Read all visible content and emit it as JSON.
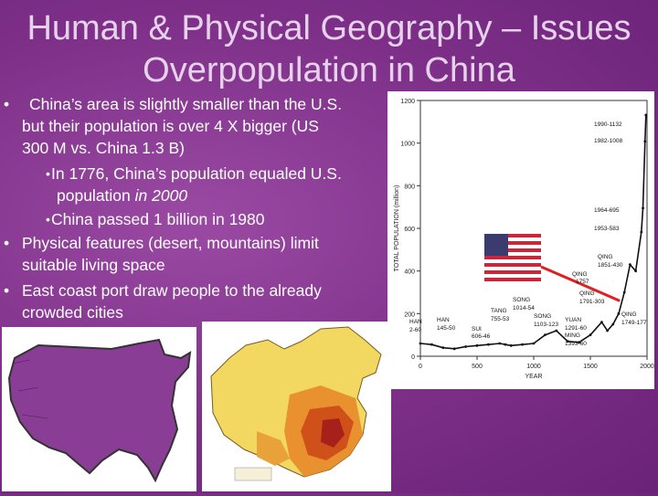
{
  "slide": {
    "title_line1": "Human & Physical Geography – Issues",
    "title_line2": "Overpopulation in China"
  },
  "bullets": {
    "b1_line1": "China’s area is slightly smaller than the U.S.",
    "b1_line2": "but their population is over 4 X bigger (US",
    "b1_line3": "300 M vs. China 1.3 B)",
    "s1_line1": "In 1776, China’s population equaled U.S.",
    "s1_line2a": "population ",
    "s1_line2b": "in 2000",
    "s2_line1": "China passed 1 billion in 1980",
    "b2_line1": "Physical features (desert, mountains) limit",
    "b2_line2": "suitable living space",
    "b3_line1": "East coast port draw people to the already",
    "b3_line2": "crowded cities",
    "bullet_char": "•"
  },
  "chart_data": {
    "type": "line",
    "ylabel": "TOTAL POPULATION (million)",
    "xlabel": "YEAR",
    "xlim": [
      0,
      2000
    ],
    "ylim": [
      0,
      1200
    ],
    "x_ticks": [
      "0",
      "500",
      "1000",
      "1500",
      "2000"
    ],
    "y_ticks": [
      "0",
      "200",
      "400",
      "600",
      "800",
      "1000",
      "1200"
    ],
    "series": [
      {
        "x": [
          0,
          100,
          200,
          300,
          400,
          500,
          600,
          700,
          750,
          800,
          900,
          1000,
          1100,
          1200,
          1300,
          1400,
          1500,
          1600,
          1650,
          1700,
          1750,
          1800,
          1850,
          1900,
          1950,
          1964,
          1982,
          1990
        ],
        "y": [
          60,
          55,
          40,
          35,
          45,
          50,
          55,
          60,
          55,
          50,
          55,
          60,
          100,
          120,
          70,
          65,
          100,
          160,
          120,
          150,
          200,
          300,
          430,
          400,
          583,
          695,
          1008,
          1132
        ]
      }
    ],
    "annotations": [
      {
        "text": "1990-1132",
        "x": 1990,
        "y": 1132
      },
      {
        "text": "1982-1008",
        "x": 1982,
        "y": 1008
      },
      {
        "text": "1964-695",
        "x": 1964,
        "y": 695
      },
      {
        "text": "1953-583",
        "x": 1953,
        "y": 583
      },
      {
        "text": "QING",
        "x": 1851,
        "y": 430
      },
      {
        "text": "1851-430",
        "x": 1851,
        "y": 430
      },
      {
        "text": "QING",
        "x": 1757,
        "y": 357
      },
      {
        "text": "1757",
        "x": 1757,
        "y": 357
      },
      {
        "text": "QING",
        "x": 1791,
        "y": 303
      },
      {
        "text": "1791-303",
        "x": 1791,
        "y": 303
      },
      {
        "text": "QING",
        "x": 1749,
        "y": 177
      },
      {
        "text": "1749-177",
        "x": 1749,
        "y": 177
      },
      {
        "text": "SONG",
        "x": 1014,
        "y": 54
      },
      {
        "text": "1014-54",
        "x": 1014,
        "y": 54
      },
      {
        "text": "TANG",
        "x": 755,
        "y": 53
      },
      {
        "text": "755-53",
        "x": 755,
        "y": 53
      },
      {
        "text": "SONG",
        "x": 1103,
        "y": 123
      },
      {
        "text": "1103-123",
        "x": 1103,
        "y": 123
      },
      {
        "text": "YUAN",
        "x": 1291,
        "y": 60
      },
      {
        "text": "1291-60",
        "x": 1291,
        "y": 60
      },
      {
        "text": "MING",
        "x": 1393,
        "y": 60
      },
      {
        "text": "1393-60",
        "x": 1393,
        "y": 60
      },
      {
        "text": "HAN",
        "x": 2,
        "y": 60
      },
      {
        "text": "2-60",
        "x": 2,
        "y": 60
      },
      {
        "text": "HAN",
        "x": 145,
        "y": 50
      },
      {
        "text": "145-50",
        "x": 145,
        "y": 50
      },
      {
        "text": "SUI",
        "x": 606,
        "y": 46
      },
      {
        "text": "606-46",
        "x": 606,
        "y": 46
      }
    ]
  },
  "colors": {
    "background": "#7d2f88",
    "title": "#e6d2ea",
    "arrow": "#e02020"
  }
}
